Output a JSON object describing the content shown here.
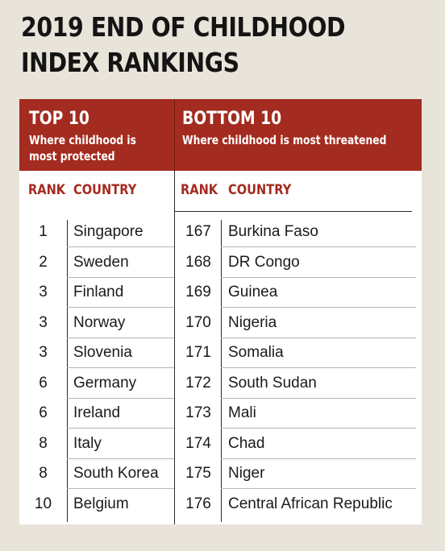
{
  "title": {
    "line1": "2019 END OF CHILDHOOD",
    "line2": "INDEX RANKINGS"
  },
  "top": {
    "heading": "TOP 10",
    "subheading": "Where childhood is most protected",
    "rank_header": "RANK",
    "country_header": "COUNTRY",
    "rows": [
      {
        "rank": "1",
        "country": "Singapore"
      },
      {
        "rank": "2",
        "country": "Sweden"
      },
      {
        "rank": "3",
        "country": "Finland"
      },
      {
        "rank": "3",
        "country": "Norway"
      },
      {
        "rank": "3",
        "country": "Slovenia"
      },
      {
        "rank": "6",
        "country": "Germany"
      },
      {
        "rank": "6",
        "country": "Ireland"
      },
      {
        "rank": "8",
        "country": "Italy"
      },
      {
        "rank": "8",
        "country": "South Korea"
      },
      {
        "rank": "10",
        "country": "Belgium"
      }
    ]
  },
  "bottom": {
    "heading": "BOTTOM 10",
    "subheading": "Where childhood is most threatened",
    "rank_header": "RANK",
    "country_header": "COUNTRY",
    "rows": [
      {
        "rank": "167",
        "country": "Burkina Faso"
      },
      {
        "rank": "168",
        "country": "DR Congo"
      },
      {
        "rank": "169",
        "country": "Guinea"
      },
      {
        "rank": "170",
        "country": "Nigeria"
      },
      {
        "rank": "171",
        "country": "Somalia"
      },
      {
        "rank": "172",
        "country": "South Sudan"
      },
      {
        "rank": "173",
        "country": "Mali"
      },
      {
        "rank": "174",
        "country": "Chad"
      },
      {
        "rank": "175",
        "country": "Niger"
      },
      {
        "rank": "176",
        "country": "Central African Republic"
      }
    ]
  },
  "colors": {
    "accent": "#a42b1f",
    "background": "#e9e4d9"
  }
}
